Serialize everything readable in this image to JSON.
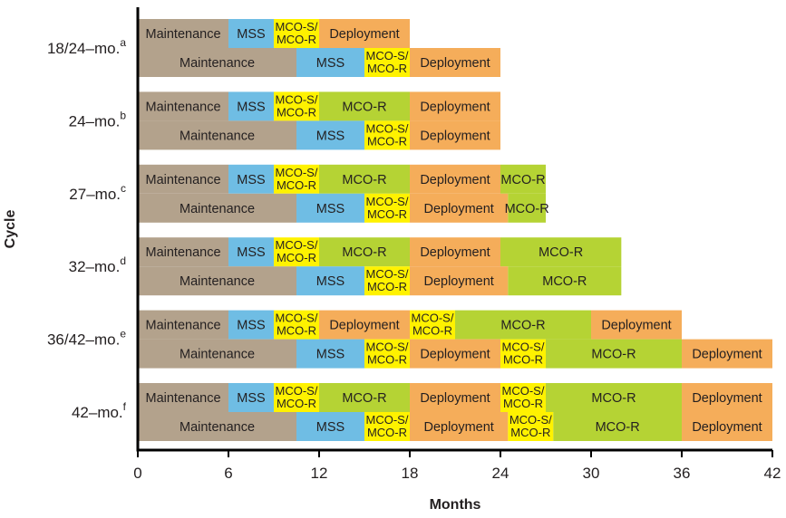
{
  "chart_data": {
    "type": "gantt",
    "title": "",
    "xlabel": "Months",
    "ylabel": "Cycle",
    "xlim": [
      0,
      42
    ],
    "xticks": [
      0,
      6,
      12,
      18,
      24,
      30,
      36,
      42
    ],
    "colors": {
      "Maintenance": "#b3a28c",
      "MSS": "#6fbde4",
      "MCO-S/MCO-R": "#fff200",
      "MCO-R": "#b5d334",
      "Deployment": "#f5ad5a"
    },
    "cycles": [
      {
        "label": "18/24–mo.",
        "note": "a",
        "rows": [
          [
            {
              "phase": "Maintenance",
              "label": "Maintenance",
              "start": 0,
              "end": 6
            },
            {
              "phase": "MSS",
              "label": "MSS",
              "start": 6,
              "end": 9
            },
            {
              "phase": "MCO-S/MCO-R",
              "label": "MCO-S/ MCO-R",
              "start": 9,
              "end": 12
            },
            {
              "phase": "Deployment",
              "label": "Deployment",
              "start": 12,
              "end": 18
            }
          ],
          [
            {
              "phase": "Maintenance",
              "label": "Maintenance",
              "start": 0,
              "end": 10.5
            },
            {
              "phase": "MSS",
              "label": "MSS",
              "start": 10.5,
              "end": 15
            },
            {
              "phase": "MCO-S/MCO-R",
              "label": "MCO-S/ MCO-R",
              "start": 15,
              "end": 18
            },
            {
              "phase": "Deployment",
              "label": "Deployment",
              "start": 18,
              "end": 24
            }
          ]
        ]
      },
      {
        "label": "24–mo.",
        "note": "b",
        "rows": [
          [
            {
              "phase": "Maintenance",
              "label": "Maintenance",
              "start": 0,
              "end": 6
            },
            {
              "phase": "MSS",
              "label": "MSS",
              "start": 6,
              "end": 9
            },
            {
              "phase": "MCO-S/MCO-R",
              "label": "MCO-S/ MCO-R",
              "start": 9,
              "end": 12
            },
            {
              "phase": "MCO-R",
              "label": "MCO-R",
              "start": 12,
              "end": 18
            },
            {
              "phase": "Deployment",
              "label": "Deployment",
              "start": 18,
              "end": 24
            }
          ],
          [
            {
              "phase": "Maintenance",
              "label": "Maintenance",
              "start": 0,
              "end": 10.5
            },
            {
              "phase": "MSS",
              "label": "MSS",
              "start": 10.5,
              "end": 15
            },
            {
              "phase": "MCO-S/MCO-R",
              "label": "MCO-S/ MCO-R",
              "start": 15,
              "end": 18
            },
            {
              "phase": "Deployment",
              "label": "Deployment",
              "start": 18,
              "end": 24
            }
          ]
        ]
      },
      {
        "label": "27–mo.",
        "note": "c",
        "rows": [
          [
            {
              "phase": "Maintenance",
              "label": "Maintenance",
              "start": 0,
              "end": 6
            },
            {
              "phase": "MSS",
              "label": "MSS",
              "start": 6,
              "end": 9
            },
            {
              "phase": "MCO-S/MCO-R",
              "label": "MCO-S/ MCO-R",
              "start": 9,
              "end": 12
            },
            {
              "phase": "MCO-R",
              "label": "MCO-R",
              "start": 12,
              "end": 18
            },
            {
              "phase": "Deployment",
              "label": "Deployment",
              "start": 18,
              "end": 24
            },
            {
              "phase": "MCO-R",
              "label": "MCO-R",
              "start": 24,
              "end": 27
            }
          ],
          [
            {
              "phase": "Maintenance",
              "label": "Maintenance",
              "start": 0,
              "end": 10.5
            },
            {
              "phase": "MSS",
              "label": "MSS",
              "start": 10.5,
              "end": 15
            },
            {
              "phase": "MCO-S/MCO-R",
              "label": "MCO-S/ MCO-R",
              "start": 15,
              "end": 18
            },
            {
              "phase": "Deployment",
              "label": "Deployment",
              "start": 18,
              "end": 24.5
            },
            {
              "phase": "MCO-R",
              "label": "MCO-R",
              "start": 24.5,
              "end": 27
            }
          ]
        ]
      },
      {
        "label": "32–mo.",
        "note": "d",
        "rows": [
          [
            {
              "phase": "Maintenance",
              "label": "Maintenance",
              "start": 0,
              "end": 6
            },
            {
              "phase": "MSS",
              "label": "MSS",
              "start": 6,
              "end": 9
            },
            {
              "phase": "MCO-S/MCO-R",
              "label": "MCO-S/ MCO-R",
              "start": 9,
              "end": 12
            },
            {
              "phase": "MCO-R",
              "label": "MCO-R",
              "start": 12,
              "end": 18
            },
            {
              "phase": "Deployment",
              "label": "Deployment",
              "start": 18,
              "end": 24
            },
            {
              "phase": "MCO-R",
              "label": "MCO-R",
              "start": 24,
              "end": 32
            }
          ],
          [
            {
              "phase": "Maintenance",
              "label": "Maintenance",
              "start": 0,
              "end": 10.5
            },
            {
              "phase": "MSS",
              "label": "MSS",
              "start": 10.5,
              "end": 15
            },
            {
              "phase": "MCO-S/MCO-R",
              "label": "MCO-S/ MCO-R",
              "start": 15,
              "end": 18
            },
            {
              "phase": "Deployment",
              "label": "Deployment",
              "start": 18,
              "end": 24.5
            },
            {
              "phase": "MCO-R",
              "label": "MCO-R",
              "start": 24.5,
              "end": 32
            }
          ]
        ]
      },
      {
        "label": "36/42–mo.",
        "note": "e",
        "rows": [
          [
            {
              "phase": "Maintenance",
              "label": "Maintenance",
              "start": 0,
              "end": 6
            },
            {
              "phase": "MSS",
              "label": "MSS",
              "start": 6,
              "end": 9
            },
            {
              "phase": "MCO-S/MCO-R",
              "label": "MCO-S/ MCO-R",
              "start": 9,
              "end": 12
            },
            {
              "phase": "Deployment",
              "label": "Deployment",
              "start": 12,
              "end": 18
            },
            {
              "phase": "MCO-S/MCO-R",
              "label": "MCO-S/ MCO-R",
              "start": 18,
              "end": 21
            },
            {
              "phase": "MCO-R",
              "label": "MCO-R",
              "start": 21,
              "end": 30
            },
            {
              "phase": "Deployment",
              "label": "Deployment",
              "start": 30,
              "end": 36
            }
          ],
          [
            {
              "phase": "Maintenance",
              "label": "Maintenance",
              "start": 0,
              "end": 10.5
            },
            {
              "phase": "MSS",
              "label": "MSS",
              "start": 10.5,
              "end": 15
            },
            {
              "phase": "MCO-S/MCO-R",
              "label": "MCO-S/ MCO-R",
              "start": 15,
              "end": 18
            },
            {
              "phase": "Deployment",
              "label": "Deployment",
              "start": 18,
              "end": 24
            },
            {
              "phase": "MCO-S/MCO-R",
              "label": "MCO-S/ MCO-R",
              "start": 24,
              "end": 27
            },
            {
              "phase": "MCO-R",
              "label": "MCO-R",
              "start": 27,
              "end": 36
            },
            {
              "phase": "Deployment",
              "label": "Deployment",
              "start": 36,
              "end": 42
            }
          ]
        ]
      },
      {
        "label": "42–mo.",
        "note": "f",
        "rows": [
          [
            {
              "phase": "Maintenance",
              "label": "Maintenance",
              "start": 0,
              "end": 6
            },
            {
              "phase": "MSS",
              "label": "MSS",
              "start": 6,
              "end": 9
            },
            {
              "phase": "MCO-S/MCO-R",
              "label": "MCO-S/ MCO-R",
              "start": 9,
              "end": 12
            },
            {
              "phase": "MCO-R",
              "label": "MCO-R",
              "start": 12,
              "end": 18
            },
            {
              "phase": "Deployment",
              "label": "Deployment",
              "start": 18,
              "end": 24
            },
            {
              "phase": "MCO-S/MCO-R",
              "label": "MCO-S/ MCO-R",
              "start": 24,
              "end": 27
            },
            {
              "phase": "MCO-R",
              "label": "MCO-R",
              "start": 27,
              "end": 36
            },
            {
              "phase": "Deployment",
              "label": "Deployment",
              "start": 36,
              "end": 42
            }
          ],
          [
            {
              "phase": "Maintenance",
              "label": "Maintenance",
              "start": 0,
              "end": 10.5
            },
            {
              "phase": "MSS",
              "label": "MSS",
              "start": 10.5,
              "end": 15
            },
            {
              "phase": "MCO-S/MCO-R",
              "label": "MCO-S/ MCO-R",
              "start": 15,
              "end": 18
            },
            {
              "phase": "Deployment",
              "label": "Deployment",
              "start": 18,
              "end": 24.5
            },
            {
              "phase": "MCO-S/MCO-R",
              "label": "MCO-S/ MCO-R",
              "start": 24.5,
              "end": 27.5
            },
            {
              "phase": "MCO-R",
              "label": "MCO-R",
              "start": 27.5,
              "end": 36
            },
            {
              "phase": "Deployment",
              "label": "Deployment",
              "start": 36,
              "end": 42
            }
          ]
        ]
      }
    ]
  }
}
